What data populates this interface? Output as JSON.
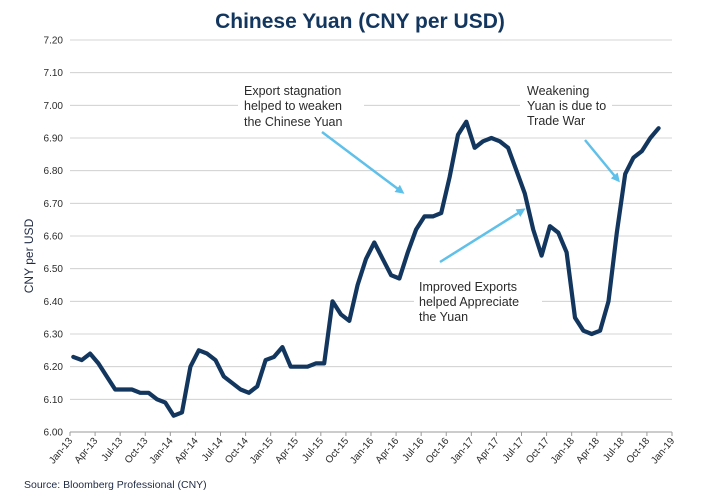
{
  "chart_data": {
    "type": "line",
    "title": "Chinese Yuan (CNY per USD)",
    "ylabel": "CNY per USD",
    "xlabel": "",
    "ylim": [
      6.0,
      7.2
    ],
    "yticks": [
      "6.00",
      "6.10",
      "6.20",
      "6.30",
      "6.40",
      "6.50",
      "6.60",
      "6.70",
      "6.80",
      "6.90",
      "7.00",
      "7.10",
      "7.20"
    ],
    "xticks": [
      "Jan-13",
      "Apr-13",
      "Jul-13",
      "Oct-13",
      "Jan-14",
      "Apr-14",
      "Jul-14",
      "Oct-14",
      "Jan-15",
      "Apr-15",
      "Jul-15",
      "Oct-15",
      "Jan-16",
      "Apr-16",
      "Jul-16",
      "Oct-16",
      "Jan-17",
      "Apr-17",
      "Jul-17",
      "Oct-17",
      "Jan-18",
      "Apr-18",
      "Jul-18",
      "Oct-18",
      "Jan-19"
    ],
    "grid": true,
    "line_color": "#13365f",
    "arrow_color": "#5fc0ea",
    "series": [
      {
        "name": "",
        "x": [
          "2013-01",
          "2013-02",
          "2013-03",
          "2013-04",
          "2013-05",
          "2013-06",
          "2013-07",
          "2013-08",
          "2013-09",
          "2013-10",
          "2013-11",
          "2013-12",
          "2014-01",
          "2014-02",
          "2014-03",
          "2014-04",
          "2014-05",
          "2014-06",
          "2014-07",
          "2014-08",
          "2014-09",
          "2014-10",
          "2014-11",
          "2014-12",
          "2015-01",
          "2015-02",
          "2015-03",
          "2015-04",
          "2015-05",
          "2015-06",
          "2015-07",
          "2015-08",
          "2015-09",
          "2015-10",
          "2015-11",
          "2015-12",
          "2016-01",
          "2016-02",
          "2016-03",
          "2016-04",
          "2016-05",
          "2016-06",
          "2016-07",
          "2016-08",
          "2016-09",
          "2016-10",
          "2016-11",
          "2016-12",
          "2017-01",
          "2017-02",
          "2017-03",
          "2017-04",
          "2017-05",
          "2017-06",
          "2017-07",
          "2017-08",
          "2017-09",
          "2017-10",
          "2017-11",
          "2017-12",
          "2018-01",
          "2018-02",
          "2018-03",
          "2018-04",
          "2018-05",
          "2018-06",
          "2018-07",
          "2018-08",
          "2018-09",
          "2018-10",
          "2018-11"
        ],
        "values": [
          6.23,
          6.22,
          6.24,
          6.21,
          6.17,
          6.13,
          6.13,
          6.13,
          6.12,
          6.12,
          6.1,
          6.09,
          6.05,
          6.06,
          6.2,
          6.25,
          6.24,
          6.22,
          6.17,
          6.15,
          6.13,
          6.12,
          6.14,
          6.22,
          6.23,
          6.26,
          6.2,
          6.2,
          6.2,
          6.21,
          6.21,
          6.4,
          6.36,
          6.34,
          6.45,
          6.53,
          6.58,
          6.53,
          6.48,
          6.47,
          6.55,
          6.62,
          6.66,
          6.66,
          6.67,
          6.78,
          6.91,
          6.95,
          6.87,
          6.89,
          6.9,
          6.89,
          6.87,
          6.8,
          6.73,
          6.62,
          6.54,
          6.63,
          6.61,
          6.55,
          6.35,
          6.31,
          6.3,
          6.31,
          6.4,
          6.61,
          6.79,
          6.84,
          6.86,
          6.9,
          6.93
        ]
      }
    ],
    "annotations": [
      {
        "lines": [
          "Export stagnation",
          "helped to weaken",
          "the Chinese Yuan"
        ]
      },
      {
        "lines": [
          "Weakening",
          "Yuan is due to",
          "Trade War"
        ]
      },
      {
        "lines": [
          "Improved Exports",
          "helped Appreciate",
          "the Yuan"
        ]
      }
    ],
    "source": "Source:  Bloomberg Professional (CNY)"
  }
}
